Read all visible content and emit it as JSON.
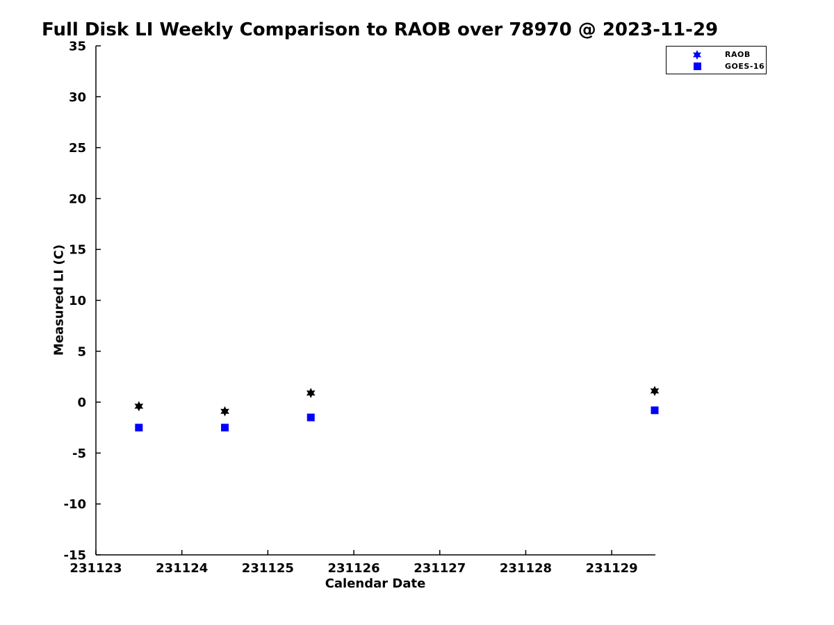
{
  "chart_data": {
    "type": "scatter",
    "title": "Full Disk LI Weekly Comparison to RAOB over 78970 @ 2023-11-29",
    "xlabel": "Calendar Date",
    "ylabel": "Measured LI (C)",
    "xlim": [
      231123,
      231129.5
    ],
    "ylim": [
      -15,
      35
    ],
    "xticks": [
      231123,
      231124,
      231125,
      231126,
      231127,
      231128,
      231129
    ],
    "yticks": [
      -15,
      -10,
      -5,
      0,
      5,
      10,
      15,
      20,
      25,
      30,
      35
    ],
    "grid": false,
    "box": false,
    "legend_position": "top-right",
    "x": [
      231123.5,
      231124.5,
      231125.5,
      231129.5
    ],
    "series": [
      {
        "name": "RAOB",
        "marker": "hexagram",
        "color": "#000000",
        "legend_marker_color": "#0000ff",
        "values": [
          -0.4,
          -0.9,
          0.9,
          1.1
        ]
      },
      {
        "name": "GOES-16",
        "marker": "square",
        "color": "#0000ff",
        "legend_marker_color": "#0000ff",
        "values": [
          -2.5,
          -2.5,
          -1.5,
          -0.8
        ]
      }
    ],
    "colors": {
      "axis": "#000000",
      "background": "#ffffff"
    }
  }
}
